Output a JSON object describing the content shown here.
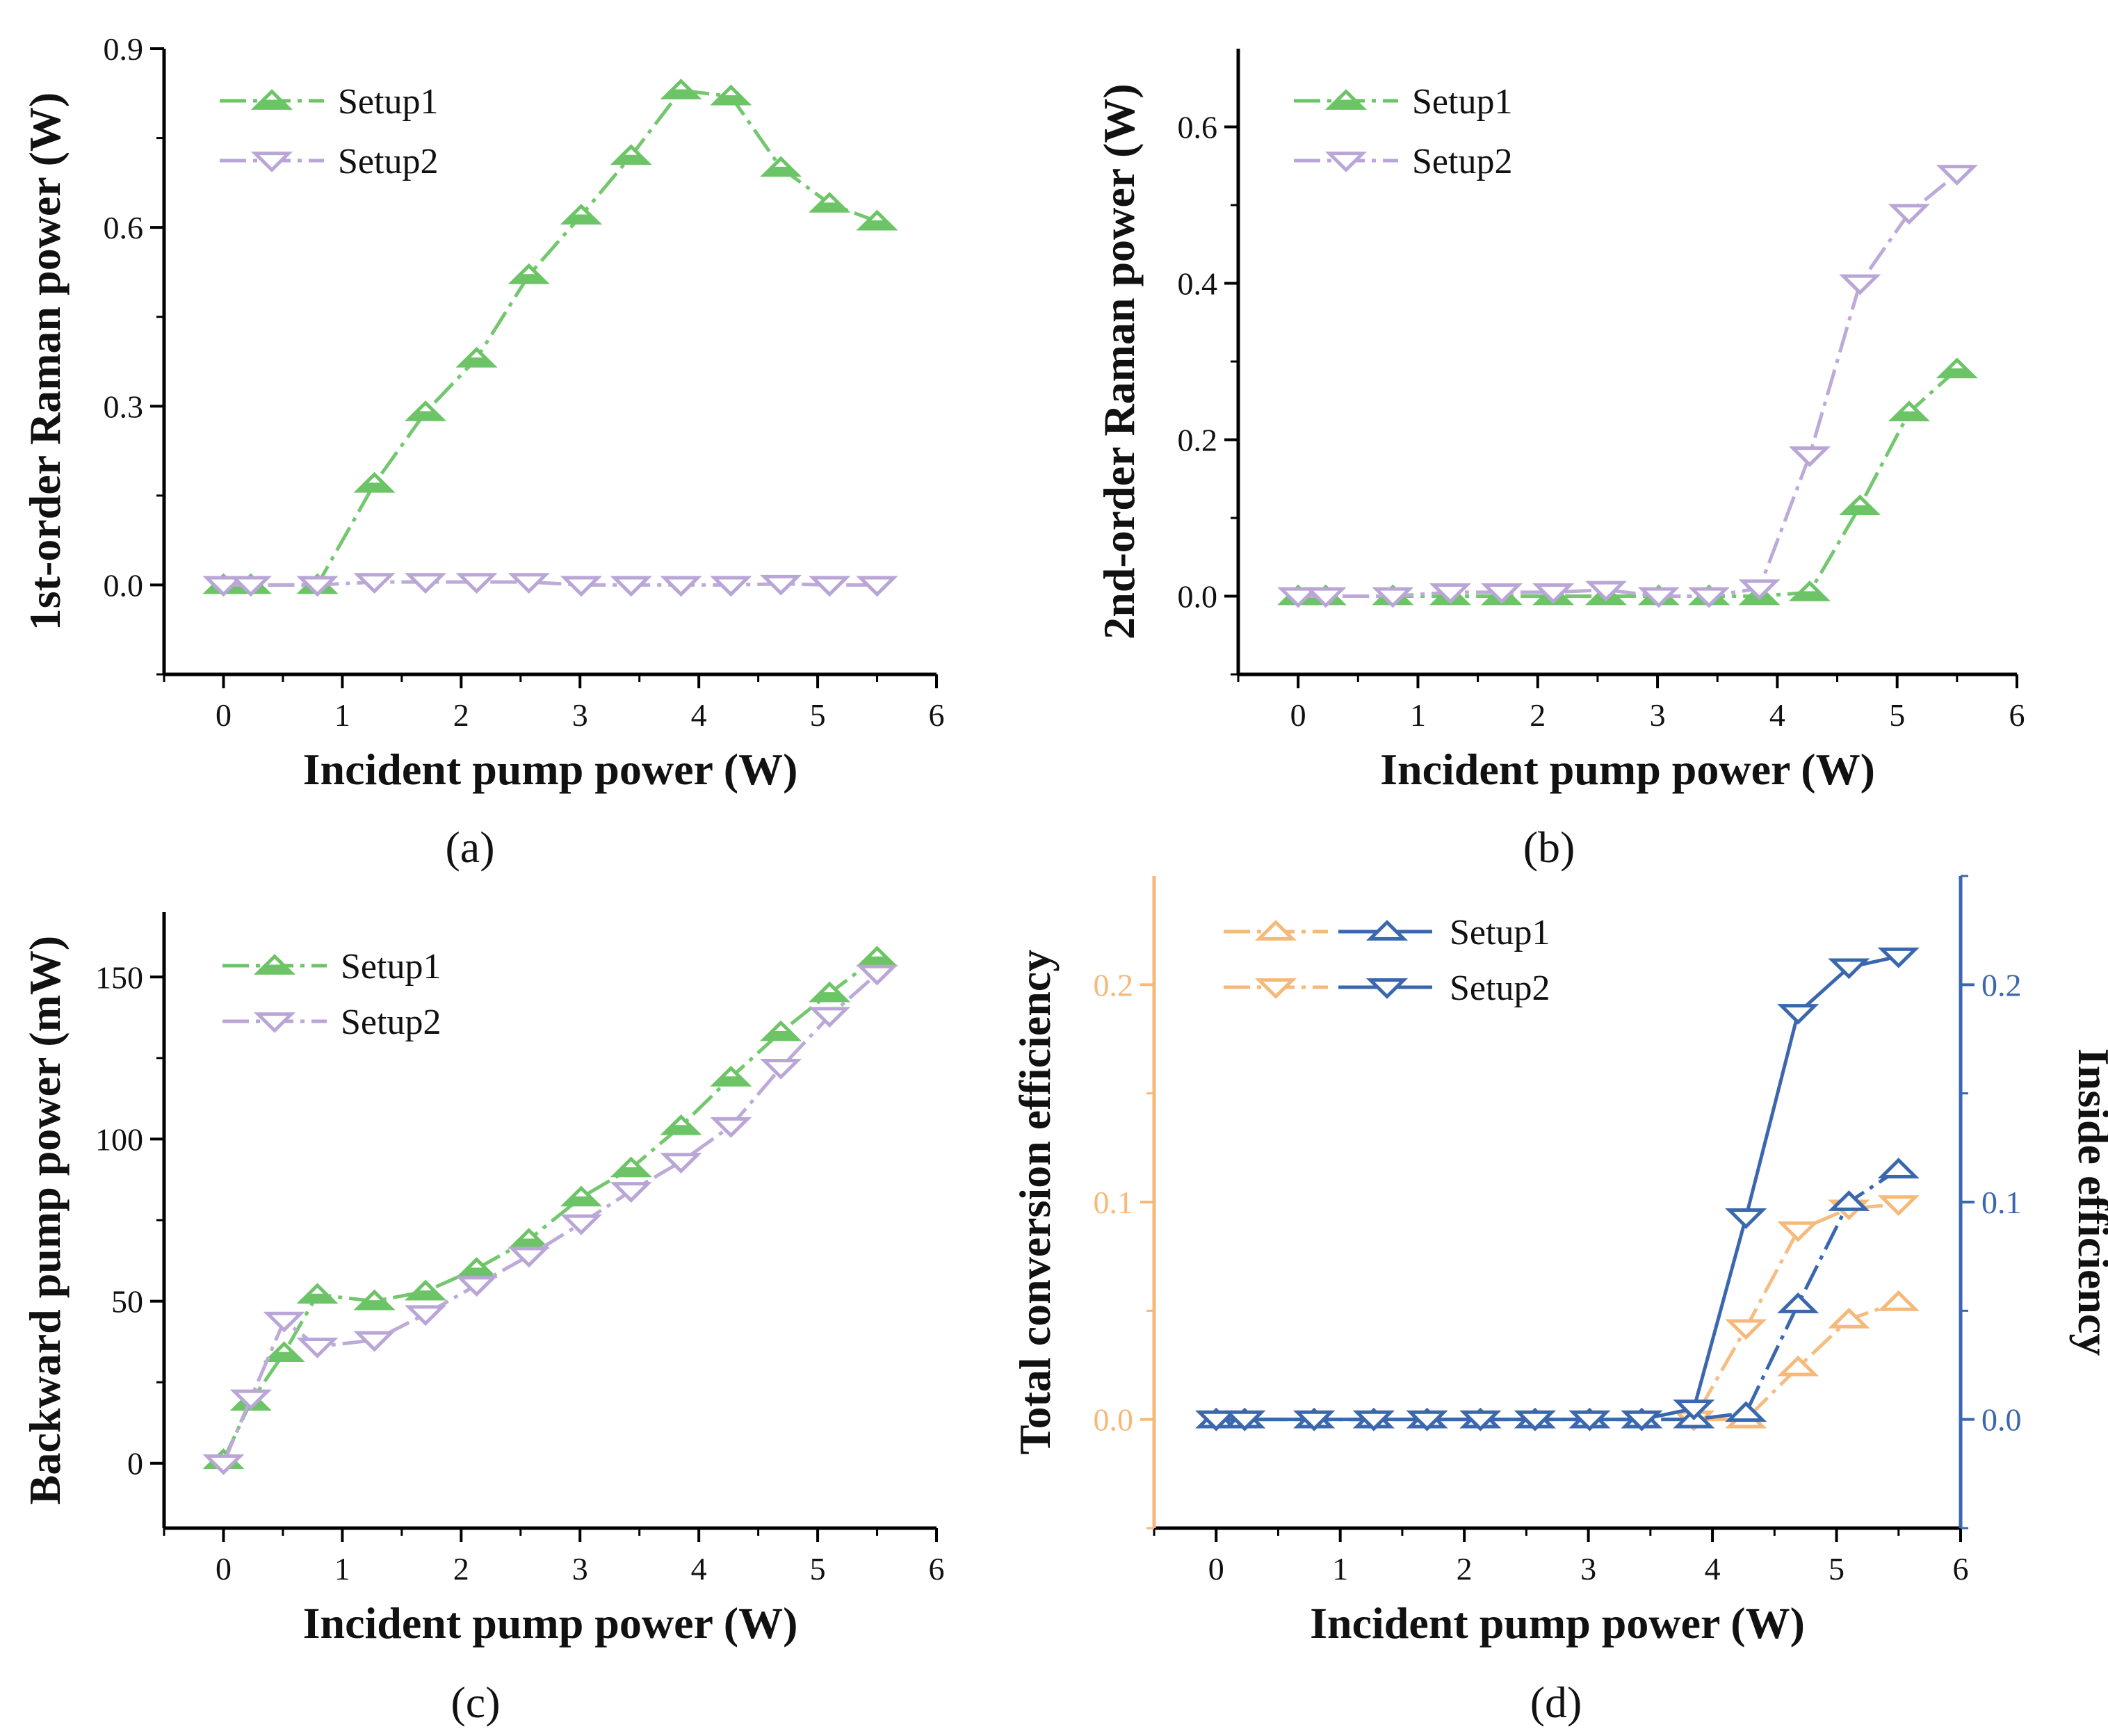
{
  "figure": {
    "captions": [
      "(a)",
      "(b)",
      "(c)",
      "(d)"
    ]
  },
  "chart_data": [
    {
      "id": "a",
      "type": "line",
      "caption": "(a)",
      "xlabel": "Incident pump power (W)",
      "ylabel": "1st-order Raman power (W)",
      "xlim": [
        -0.5,
        6
      ],
      "ylim": [
        -0.15,
        0.9
      ],
      "xticks": [
        0,
        1,
        2,
        3,
        4,
        5,
        6
      ],
      "xtick_labels": [
        "0",
        "1",
        "2",
        "3",
        "4",
        "5",
        "6"
      ],
      "yticks": [
        0.0,
        0.3,
        0.6,
        0.9
      ],
      "ytick_labels": [
        "0.0",
        "0.3",
        "0.6",
        "0.9"
      ],
      "legend_position": "top-left",
      "series": [
        {
          "name": "Setup1",
          "marker": "triangle-up",
          "filled": true,
          "color": "#6cc466",
          "line_style": "dash-dot",
          "x": [
            0,
            0.23,
            0.79,
            1.27,
            1.7,
            2.13,
            2.57,
            3.01,
            3.43,
            3.85,
            4.27,
            4.69,
            5.1,
            5.5
          ],
          "y": [
            0.0,
            0.0,
            0.0,
            0.17,
            0.29,
            0.38,
            0.52,
            0.62,
            0.72,
            0.83,
            0.82,
            0.7,
            0.64,
            0.61
          ]
        },
        {
          "name": "Setup2",
          "marker": "triangle-down",
          "filled": false,
          "color": "#b9a6d6",
          "line_style": "dash-dot",
          "x": [
            0,
            0.23,
            0.79,
            1.27,
            1.7,
            2.13,
            2.57,
            3.01,
            3.43,
            3.85,
            4.27,
            4.69,
            5.1,
            5.5
          ],
          "y": [
            0.0,
            0.0,
            0.0,
            0.005,
            0.005,
            0.005,
            0.005,
            0.0,
            0.0,
            0.0,
            0.0,
            0.002,
            0.0,
            0.0
          ]
        }
      ]
    },
    {
      "id": "b",
      "type": "line",
      "caption": "(b)",
      "xlabel": "Incident pump power (W)",
      "ylabel": "2nd-order Raman power (W)",
      "xlim": [
        -0.5,
        6
      ],
      "ylim": [
        -0.1,
        0.7
      ],
      "xticks": [
        0,
        1,
        2,
        3,
        4,
        5,
        6
      ],
      "xtick_labels": [
        "0",
        "1",
        "2",
        "3",
        "4",
        "5",
        "6"
      ],
      "yticks": [
        0.0,
        0.2,
        0.4,
        0.6
      ],
      "ytick_labels": [
        "0.0",
        "0.2",
        "0.4",
        "0.6"
      ],
      "legend_position": "top-left",
      "series": [
        {
          "name": "Setup1",
          "marker": "triangle-up",
          "filled": true,
          "color": "#6cc466",
          "line_style": "dash-dot",
          "x": [
            0,
            0.23,
            0.79,
            1.27,
            1.7,
            2.13,
            2.57,
            3.01,
            3.43,
            3.85,
            4.27,
            4.69,
            5.1,
            5.5
          ],
          "y": [
            0.0,
            0.0,
            0.0,
            0.0,
            0.0,
            0.0,
            0.0,
            0.0,
            0.0,
            0.0,
            0.005,
            0.115,
            0.235,
            0.29
          ]
        },
        {
          "name": "Setup2",
          "marker": "triangle-down",
          "filled": false,
          "color": "#b9a6d6",
          "line_style": "dash-dot",
          "x": [
            0,
            0.23,
            0.79,
            1.27,
            1.7,
            2.13,
            2.57,
            3.01,
            3.43,
            3.85,
            4.27,
            4.69,
            5.1,
            5.5
          ],
          "y": [
            0.0,
            0.0,
            0.0,
            0.005,
            0.005,
            0.005,
            0.008,
            0.0,
            0.0,
            0.01,
            0.18,
            0.4,
            0.49,
            0.54
          ]
        }
      ]
    },
    {
      "id": "c",
      "type": "line",
      "caption": "(c)",
      "xlabel": "Incident pump power (W)",
      "ylabel": "Backward pump power (mW)",
      "xlim": [
        -0.5,
        6
      ],
      "ylim": [
        -20,
        170
      ],
      "xticks": [
        0,
        1,
        2,
        3,
        4,
        5,
        6
      ],
      "xtick_labels": [
        "0",
        "1",
        "2",
        "3",
        "4",
        "5",
        "6"
      ],
      "yticks": [
        0,
        50,
        100,
        150
      ],
      "ytick_labels": [
        "0",
        "50",
        "100",
        "150"
      ],
      "legend_position": "top-left",
      "series": [
        {
          "name": "Setup1",
          "marker": "triangle-up",
          "filled": true,
          "color": "#6cc466",
          "line_style": "dash-dot",
          "x": [
            0,
            0.23,
            0.51,
            0.79,
            1.27,
            1.7,
            2.13,
            2.57,
            3.01,
            3.43,
            3.85,
            4.27,
            4.69,
            5.1,
            5.5
          ],
          "y": [
            1,
            19,
            34,
            52,
            50,
            53,
            60,
            69,
            82,
            91,
            104,
            119,
            133,
            145,
            156
          ]
        },
        {
          "name": "Setup2",
          "marker": "triangle-down",
          "filled": false,
          "color": "#b9a6d6",
          "line_style": "dash-dot",
          "x": [
            0,
            0.23,
            0.51,
            0.79,
            1.27,
            1.7,
            2.13,
            2.57,
            3.01,
            3.43,
            3.85,
            4.27,
            4.69,
            5.1,
            5.5
          ],
          "y": [
            0,
            20,
            44,
            36,
            38,
            46,
            55,
            64,
            74,
            84,
            93,
            104,
            122,
            138,
            151
          ]
        }
      ]
    },
    {
      "id": "d",
      "type": "line",
      "caption": "(d)",
      "xlabel": "Incident pump power (W)",
      "ylabel": "Total conversion efficiency",
      "ylabel_right": "Inside efficiency",
      "xlim": [
        -0.5,
        6
      ],
      "ylim": [
        -0.05,
        0.25
      ],
      "ylim_right": [
        -0.05,
        0.25
      ],
      "xticks": [
        0,
        1,
        2,
        3,
        4,
        5,
        6
      ],
      "xtick_labels": [
        "0",
        "1",
        "2",
        "3",
        "4",
        "5",
        "6"
      ],
      "yticks": [
        0.0,
        0.1,
        0.2
      ],
      "ytick_labels": [
        "0.0",
        "0.1",
        "0.2"
      ],
      "yticks_right": [
        0.0,
        0.1,
        0.2
      ],
      "ytick_labels_right": [
        "0.0",
        "0.1",
        "0.2"
      ],
      "left_axis_color": "#f5b97a",
      "right_axis_color": "#3a67ad",
      "legend_position": "top-left",
      "legend": [
        {
          "name": "Setup1",
          "marker": "triangle-up"
        },
        {
          "name": "Setup2",
          "marker": "triangle-down"
        }
      ],
      "series": [
        {
          "name": "Setup1 (total)",
          "axis": "left",
          "marker": "triangle-up",
          "filled": false,
          "color": "#f5b97a",
          "line_style": "dash-dot",
          "x": [
            0,
            0.23,
            0.79,
            1.27,
            1.7,
            2.13,
            2.57,
            3.01,
            3.43,
            3.85,
            4.27,
            4.69,
            5.1,
            5.5
          ],
          "y": [
            0.0,
            0.0,
            0.0,
            0.0,
            0.0,
            0.0,
            0.0,
            0.0,
            0.0,
            0.0,
            0.0,
            0.024,
            0.046,
            0.054
          ]
        },
        {
          "name": "Setup2 (total)",
          "axis": "left",
          "marker": "triangle-down",
          "filled": false,
          "color": "#f5b97a",
          "line_style": "dash-dot",
          "x": [
            0,
            0.23,
            0.79,
            1.27,
            1.7,
            2.13,
            2.57,
            3.01,
            3.43,
            3.85,
            4.27,
            4.69,
            5.1,
            5.5
          ],
          "y": [
            0.0,
            0.0,
            0.0,
            0.0,
            0.0,
            0.0,
            0.0,
            0.0,
            0.0,
            0.0,
            0.042,
            0.087,
            0.097,
            0.099
          ]
        },
        {
          "name": "Setup1 (inside)",
          "axis": "right",
          "marker": "triangle-up",
          "filled": false,
          "color": "#3a67ad",
          "line_style": "dash-dot",
          "x": [
            0,
            0.23,
            0.79,
            1.27,
            1.7,
            2.13,
            2.57,
            3.01,
            3.43,
            3.85,
            4.27,
            4.69,
            5.1,
            5.5
          ],
          "y": [
            0.0,
            0.0,
            0.0,
            0.0,
            0.0,
            0.0,
            0.0,
            0.0,
            0.0,
            0.0,
            0.003,
            0.053,
            0.1,
            0.115
          ]
        },
        {
          "name": "Setup2 (inside)",
          "axis": "right",
          "marker": "triangle-down",
          "filled": false,
          "color": "#3a67ad",
          "line_style": "solid",
          "x": [
            0,
            0.23,
            0.79,
            1.27,
            1.7,
            2.13,
            2.57,
            3.01,
            3.43,
            3.85,
            4.27,
            4.69,
            5.1,
            5.5
          ],
          "y": [
            0.0,
            0.0,
            0.0,
            0.0,
            0.0,
            0.0,
            0.0,
            0.0,
            0.0,
            0.005,
            0.093,
            0.187,
            0.208,
            0.213
          ]
        }
      ]
    }
  ]
}
